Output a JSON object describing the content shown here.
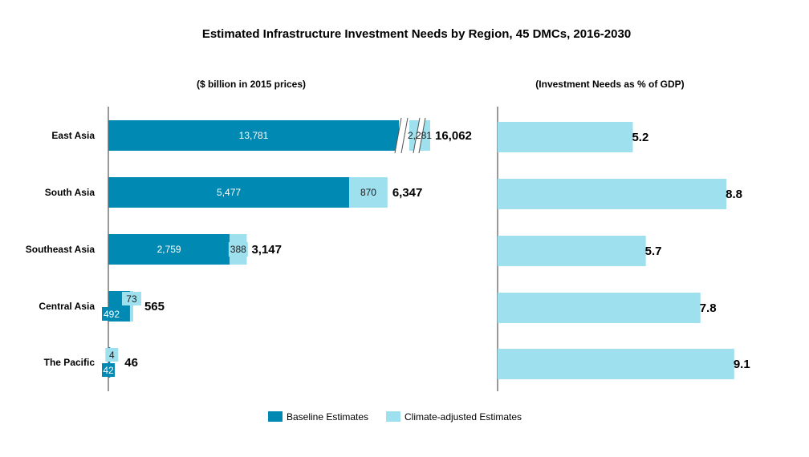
{
  "chart_data": {
    "title": "Estimated Infrastructure Investment Needs by Region, 45 DMCs, 2016-2030",
    "categories": [
      "East Asia",
      "South Asia",
      "Southeast Asia",
      "Central Asia",
      "The Pacific"
    ],
    "colors": {
      "baseline": "#0089B3",
      "climate": "#9FE0EE"
    },
    "panels": [
      {
        "type": "bar",
        "orientation": "horizontal",
        "stacked": true,
        "subtitle": "($ billion in 2015 prices)",
        "axis_break": true,
        "series": [
          {
            "name": "Baseline Estimates",
            "values": [
              13781,
              5477,
              2759,
              492,
              42
            ],
            "labels": [
              "13,781",
              "5,477",
              "2,759",
              "492",
              "42"
            ]
          },
          {
            "name": "Climate-adjusted Estimates",
            "values": [
              2281,
              870,
              388,
              73,
              4
            ],
            "labels": [
              "2,281",
              "870",
              "388",
              "73",
              "4"
            ]
          }
        ],
        "totals": [
          16062,
          6347,
          3147,
          565,
          46
        ],
        "total_labels": [
          "16,062",
          "6,347",
          "3,147",
          "565",
          "46"
        ]
      },
      {
        "type": "bar",
        "orientation": "horizontal",
        "subtitle": "(Investment Needs as % of GDP)",
        "series": [
          {
            "name": "Climate-adjusted Estimates",
            "values": [
              5.2,
              8.8,
              5.7,
              7.8,
              9.1
            ],
            "labels": [
              "5.2",
              "8.8",
              "5.7",
              "7.8",
              "9.1"
            ]
          }
        ]
      }
    ],
    "legend": {
      "position": "bottom",
      "items": [
        "Baseline Estimates",
        "Climate-adjusted Estimates"
      ]
    }
  }
}
